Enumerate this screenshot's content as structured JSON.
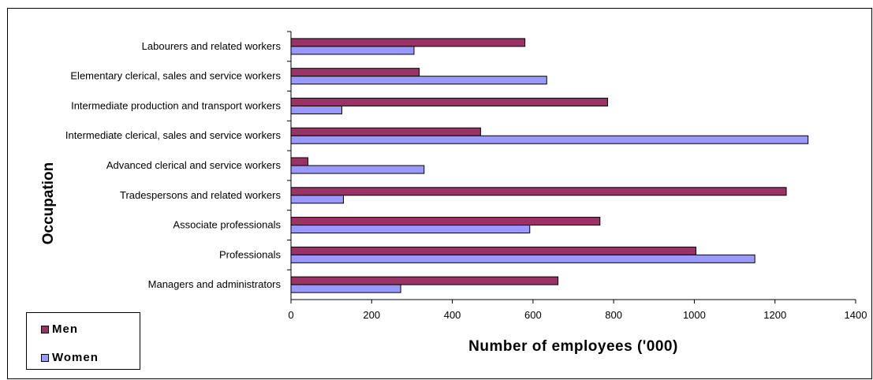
{
  "chart_data": {
    "type": "bar",
    "orientation": "horizontal",
    "categories": [
      "Managers and administrators",
      "Professionals",
      "Associate professionals",
      "Tradespersons and related workers",
      "Advanced clerical and service workers",
      "Intermediate clerical, sales and service workers",
      "Intermediate production and transport workers",
      "Elementary clerical, sales and service workers",
      "Labourers and related workers"
    ],
    "series": [
      {
        "name": "Men",
        "color": "#993366",
        "values": [
          662,
          1004,
          766,
          1228,
          42,
          470,
          785,
          318,
          580
        ]
      },
      {
        "name": "Women",
        "color": "#9999ff",
        "values": [
          272,
          1150,
          592,
          130,
          330,
          1282,
          126,
          634,
          305
        ]
      }
    ],
    "xlabel": "Number of employees ('000)",
    "ylabel": "Occupation",
    "xlim": [
      0,
      1400
    ],
    "xticks": [
      0,
      200,
      400,
      600,
      800,
      1000,
      1200,
      1400
    ],
    "grid": false,
    "legend_position": "bottom-left"
  }
}
